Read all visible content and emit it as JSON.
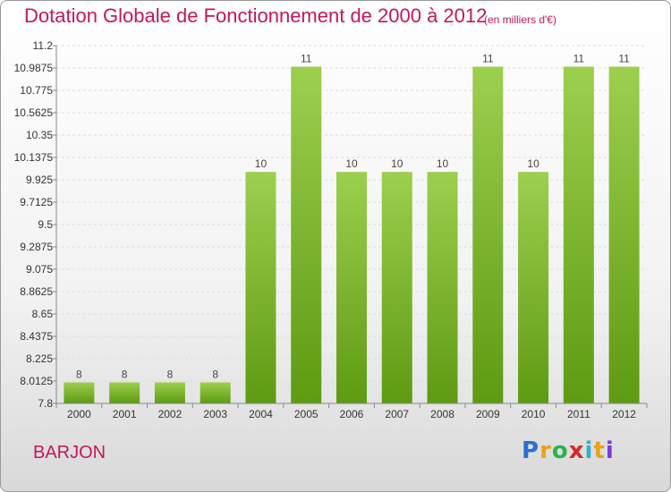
{
  "chart_data": {
    "type": "bar",
    "title": "Dotation Globale de Fonctionnement de 2000 à 2012",
    "subtitle": "(en milliers d'€)",
    "categories": [
      "2000",
      "2001",
      "2002",
      "2003",
      "2004",
      "2005",
      "2006",
      "2007",
      "2008",
      "2009",
      "2010",
      "2011",
      "2012"
    ],
    "values": [
      8,
      8,
      8,
      8,
      10,
      11,
      10,
      10,
      10,
      11,
      10,
      11,
      11
    ],
    "data_labels": [
      "8",
      "8",
      "8",
      "8",
      "10",
      "11",
      "10",
      "10",
      "10",
      "11",
      "10",
      "11",
      "11"
    ],
    "ylim": [
      7.8,
      11.2
    ],
    "yticks": [
      7.8,
      8.0125,
      8.225,
      8.4375,
      8.65,
      8.8625,
      9.075,
      9.2875,
      9.5,
      9.7125,
      9.925,
      10.1375,
      10.35,
      10.5625,
      10.775,
      10.9875,
      11.2
    ],
    "ytick_labels": [
      "7.8",
      "8.0125",
      "8.225",
      "8.4375",
      "8.65",
      "8.8625",
      "9.075",
      "9.2875",
      "9.5",
      "9.7125",
      "9.925",
      "10.1375",
      "10.35",
      "10.5625",
      "10.775",
      "10.9875",
      "11.2"
    ],
    "grid": true,
    "bar_color_top": "#9ccf4e",
    "bar_color_bottom": "#5e9a12"
  },
  "commune": "BARJON",
  "logo": {
    "letters": [
      "P",
      "r",
      "o",
      "x",
      "i",
      "t",
      "i"
    ],
    "colors": [
      "#2b6fd1",
      "#e8a21a",
      "#2bb34a",
      "#d12b2b",
      "#2bb3d1",
      "#e8a21a",
      "#7a3bd1"
    ]
  },
  "colors": {
    "title": "#c2185b",
    "grid": "#dddddd",
    "axis": "#888888"
  }
}
